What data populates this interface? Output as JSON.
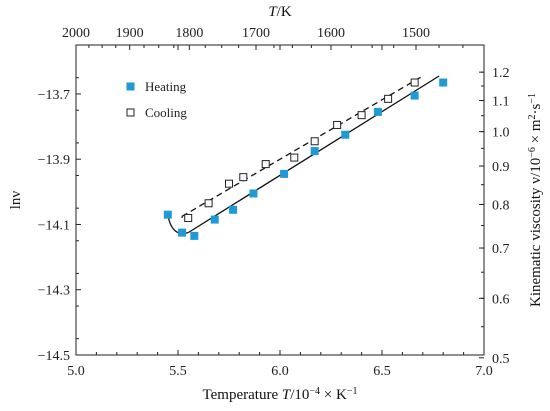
{
  "chart_data": {
    "type": "scatter",
    "xlabel_parts": [
      "Temperature ",
      "T",
      "/10",
      "−4",
      " × K",
      "−1"
    ],
    "ylabel": "lnν",
    "top_label_parts": [
      "T",
      "/K"
    ],
    "right_label_parts": [
      "Kinematic viscosity ν/10",
      "−6",
      " × m",
      "2",
      "·s",
      "−1"
    ],
    "xlim": [
      5.0,
      7.0
    ],
    "ylim": [
      -14.5,
      -13.55
    ],
    "x_ticks": [
      5.0,
      5.5,
      6.0,
      6.5,
      7.0
    ],
    "x_tick_labels": [
      "5.0",
      "5.5",
      "6.0",
      "6.5",
      "7.0"
    ],
    "y_ticks": [
      -13.7,
      -13.9,
      -14.1,
      -14.3,
      -14.5
    ],
    "y_tick_labels": [
      "−13.7",
      "−13.9",
      "−14.1",
      "−14.3",
      "−14.5"
    ],
    "top_ticks": [
      2000,
      1900,
      1800,
      1700,
      1600,
      1500
    ],
    "top_tick_labels": [
      "2000",
      "1900",
      "1800",
      "1700",
      "1600",
      "1500"
    ],
    "right_ticks": [
      1.2,
      1.1,
      1.0,
      0.9,
      0.8,
      0.7,
      0.6,
      0.5
    ],
    "right_tick_labels": [
      "1.2",
      "1.1",
      "1.0",
      "0.9",
      "0.8",
      "0.7",
      "0.6",
      "0.5"
    ],
    "legend_position": "top-left",
    "series": [
      {
        "name": "Heating",
        "marker": "filled-square",
        "color": "#1f9ad6",
        "x": [
          5.45,
          5.52,
          5.58,
          5.68,
          5.77,
          5.87,
          6.02,
          6.17,
          6.32,
          6.48,
          6.66,
          6.8
        ],
        "y": [
          -14.07,
          -14.125,
          -14.135,
          -14.085,
          -14.055,
          -14.005,
          -13.945,
          -13.875,
          -13.825,
          -13.755,
          -13.705,
          -13.665
        ]
      },
      {
        "name": "Cooling",
        "marker": "open-square",
        "color": "#222222",
        "x": [
          5.55,
          5.65,
          5.75,
          5.82,
          5.93,
          6.07,
          6.17,
          6.28,
          6.4,
          6.53,
          6.66
        ],
        "y": [
          -14.08,
          -14.035,
          -13.975,
          -13.955,
          -13.915,
          -13.895,
          -13.845,
          -13.795,
          -13.765,
          -13.715,
          -13.665
        ]
      }
    ],
    "fits": [
      {
        "series": "Heating",
        "style": "solid",
        "x": [
          5.55,
          6.78
        ],
        "y": [
          -14.125,
          -13.645
        ]
      },
      {
        "series": "Cooling",
        "style": "dashed",
        "x": [
          5.52,
          6.7
        ],
        "y": [
          -14.075,
          -13.645
        ]
      }
    ]
  }
}
